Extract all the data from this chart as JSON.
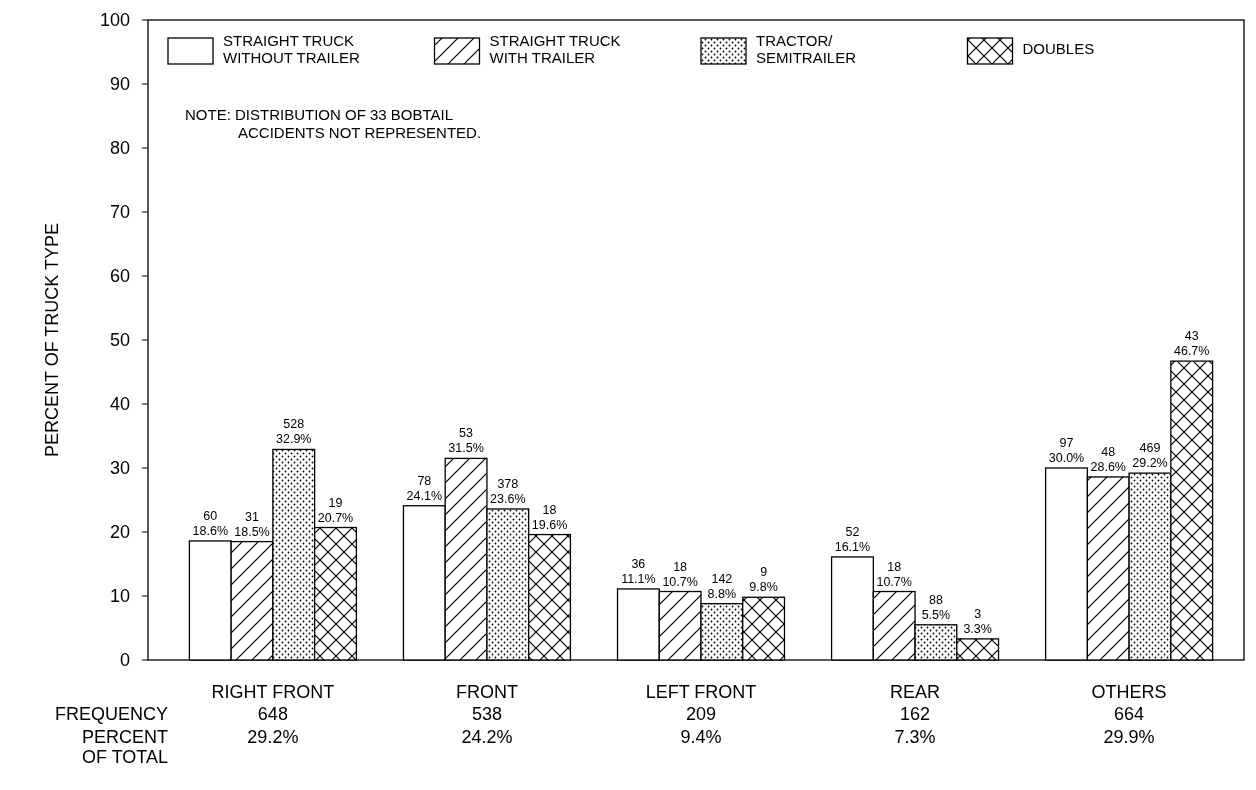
{
  "chart_data": {
    "type": "bar",
    "ylabel": "PERCENT OF TRUCK TYPE",
    "categories": [
      "RIGHT FRONT",
      "FRONT",
      "LEFT FRONT",
      "REAR",
      "OTHERS"
    ],
    "series": [
      {
        "name": "STRAIGHT TRUCK\nWITHOUT TRAILER",
        "color": "#000000",
        "values": [
          18.6,
          24.1,
          11.1,
          16.1,
          30.0
        ],
        "value_labels": [
          "60\n18.6%",
          "78\n24.1%",
          "36\n11.1%",
          "52\n16.1%",
          "97\n30.0%"
        ]
      },
      {
        "name": "STRAIGHT TRUCK\nWITH TRAILER",
        "color": "#000000",
        "values": [
          18.5,
          31.5,
          10.7,
          10.7,
          28.6
        ],
        "value_labels": [
          "31\n18.5%",
          "53\n31.5%",
          "18\n10.7%",
          "18\n10.7%",
          "48\n28.6%"
        ]
      },
      {
        "name": "TRACTOR/\nSEMITRAILER",
        "color": "#000000",
        "values": [
          32.9,
          23.6,
          8.8,
          5.5,
          29.2
        ],
        "value_labels": [
          "528\n32.9%",
          "378\n23.6%",
          "142\n8.8%",
          "88\n5.5%",
          "469\n29.2%"
        ]
      },
      {
        "name": "DOUBLES",
        "color": "#000000",
        "values": [
          20.7,
          19.6,
          9.8,
          3.3,
          46.7
        ],
        "value_labels": [
          "19\n20.7%",
          "18\n19.6%",
          "9\n9.8%",
          "3\n3.3%",
          "43\n46.7%"
        ]
      }
    ],
    "ylim": [
      0,
      100
    ],
    "yticks": [
      0,
      10,
      20,
      30,
      40,
      50,
      60,
      70,
      80,
      90,
      100
    ],
    "grid": false,
    "legend": "top",
    "annotations": [
      "NOTE:  DISTRIBUTION OF 33 BOBTAIL\nACCIDENTS NOT REPRESENTED.",
      "FREQUENCY",
      "PERCENT\nOF TOTAL",
      "648",
      "29.2%",
      "538",
      "24.2%",
      "209",
      "9.4%",
      "162",
      "7.3%",
      "664",
      "29.9%"
    ]
  }
}
